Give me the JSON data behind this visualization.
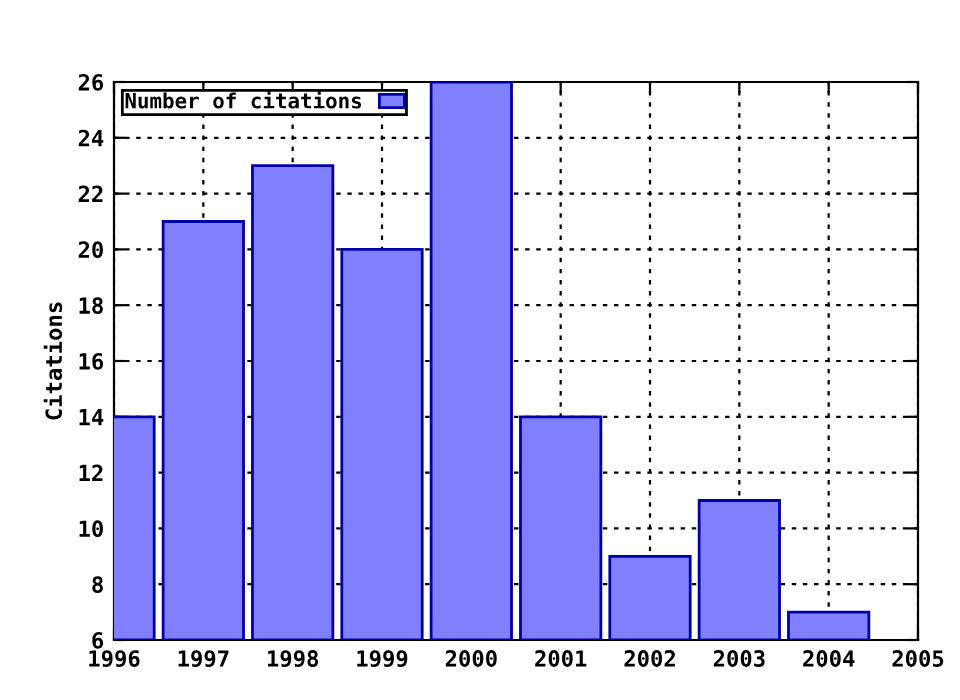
{
  "chart_data": {
    "type": "bar",
    "ylabel": "Citations",
    "x": [
      1996,
      1997,
      1998,
      1999,
      2000,
      2001,
      2002,
      2003,
      2004
    ],
    "series": [
      {
        "name": "Number of citations",
        "color": "#8080ff",
        "values": [
          14,
          21,
          23,
          20,
          26,
          14,
          9,
          11,
          7
        ]
      }
    ],
    "xlim": [
      1996,
      2005
    ],
    "xticks": [
      1996,
      1997,
      1998,
      1999,
      2000,
      2001,
      2002,
      2003,
      2004,
      2005
    ],
    "ylim": [
      6,
      26
    ],
    "yticks": [
      6,
      8,
      10,
      12,
      14,
      16,
      18,
      20,
      22,
      24,
      26
    ],
    "grid": true,
    "legend": "top left"
  }
}
